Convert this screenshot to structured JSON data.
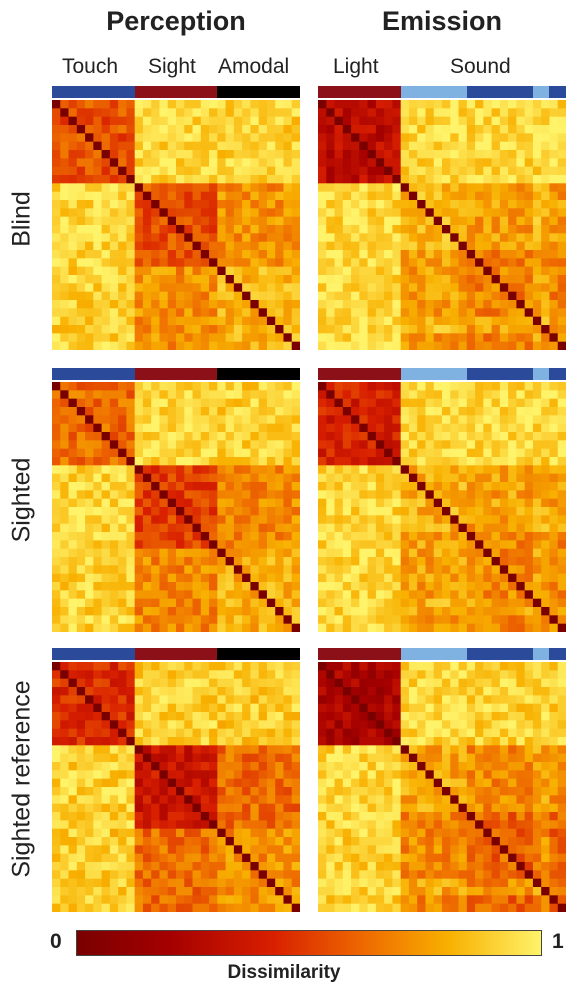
{
  "chart_data": {
    "type": "heatmap",
    "columns": [
      {
        "title": "Perception",
        "sublabels": [
          "Touch",
          "Sight",
          "Amodal"
        ],
        "n": 30,
        "groups": [
          {
            "name": "Touch",
            "count": 10,
            "color": "#2c4a9a"
          },
          {
            "name": "Sight",
            "count": 10,
            "color": "#8b1018"
          },
          {
            "name": "Amodal",
            "count": 10,
            "color": "#000000"
          }
        ]
      },
      {
        "title": "Emission",
        "sublabels": [
          "Light",
          "Sound"
        ],
        "n": 30,
        "groups": [
          {
            "name": "Light",
            "count": 10,
            "color": "#8b1018"
          },
          {
            "name": "Sound-a",
            "count": 8,
            "color": "#7fb2e0"
          },
          {
            "name": "Sound-b",
            "count": 8,
            "color": "#2c4a9a"
          },
          {
            "name": "Sound-c",
            "count": 2,
            "color": "#7fb2e0"
          },
          {
            "name": "Sound-d",
            "count": 2,
            "color": "#2c4a9a"
          }
        ]
      }
    ],
    "rows": [
      "Blind",
      "Sighted",
      "Sighted reference"
    ],
    "colorbar": {
      "min": "0",
      "max": "1",
      "label": "Dissimilarity"
    },
    "block_dissimilarity": {
      "Perception": [
        [
          [
            0.55,
            0.92,
            0.9
          ],
          [
            0.92,
            0.55,
            0.72
          ],
          [
            0.9,
            0.72,
            0.82
          ]
        ],
        [
          [
            0.62,
            0.92,
            0.9
          ],
          [
            0.92,
            0.5,
            0.7
          ],
          [
            0.9,
            0.7,
            0.8
          ]
        ],
        [
          [
            0.45,
            0.9,
            0.88
          ],
          [
            0.9,
            0.35,
            0.62
          ],
          [
            0.88,
            0.62,
            0.72
          ]
        ]
      ],
      "Emission": [
        [
          [
            0.3,
            0.92,
            0.92
          ],
          [
            0.92,
            0.82,
            0.75
          ],
          [
            0.92,
            0.75,
            0.68
          ]
        ],
        [
          [
            0.4,
            0.92,
            0.92
          ],
          [
            0.92,
            0.8,
            0.76
          ],
          [
            0.92,
            0.76,
            0.7
          ]
        ],
        [
          [
            0.22,
            0.92,
            0.9
          ],
          [
            0.92,
            0.78,
            0.7
          ],
          [
            0.9,
            0.7,
            0.6
          ]
        ]
      ]
    },
    "diagonal": 0
  }
}
